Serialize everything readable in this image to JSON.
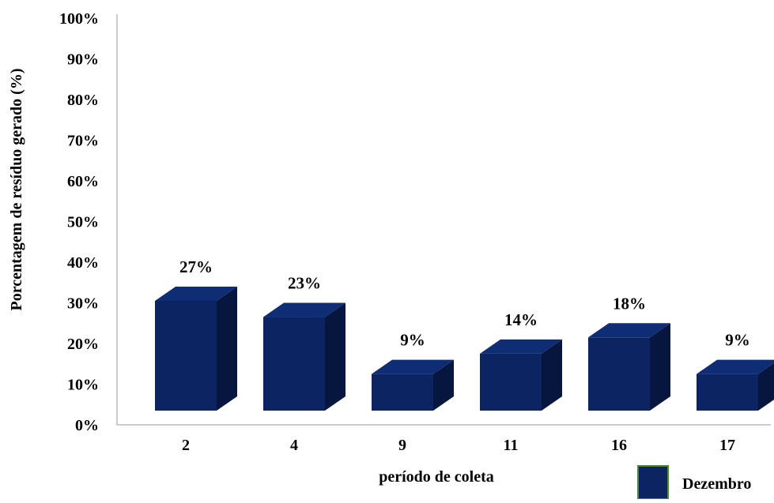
{
  "chart_data": {
    "type": "bar",
    "style": "3d-column",
    "categories": [
      "2",
      "4",
      "9",
      "11",
      "16",
      "17"
    ],
    "series": [
      {
        "name": "Dezembro",
        "values": [
          27,
          23,
          9,
          14,
          18,
          9
        ],
        "data_labels": [
          "27%",
          "23%",
          "9%",
          "14%",
          "18%",
          "9%"
        ],
        "color": "#0c2461"
      }
    ],
    "xlabel": "período de coleta",
    "ylabel": "Porcentagem de resíduo gerado (%)",
    "ylim": [
      0,
      100
    ],
    "yticks": [
      "0%",
      "10%",
      "20%",
      "30%",
      "40%",
      "50%",
      "60%",
      "70%",
      "80%",
      "90%",
      "100%"
    ],
    "grid": false,
    "legend_position": "bottom-right"
  }
}
